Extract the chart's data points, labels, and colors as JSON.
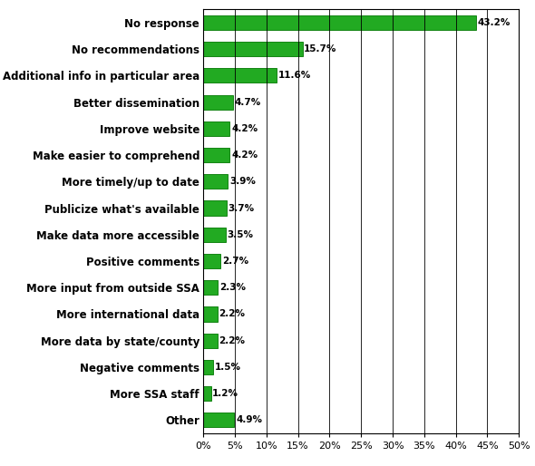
{
  "categories": [
    "Other",
    "More SSA staff",
    "Negative comments",
    "More data by state/county",
    "More international data",
    "More input from outside SSA",
    "Positive comments",
    "Make data more accessible",
    "Publicize what's available",
    "More timely/up to date",
    "Make easier to comprehend",
    "Improve website",
    "Better dissemination",
    "Additional info in particular area",
    "No recommendations",
    "No response"
  ],
  "values": [
    4.9,
    1.2,
    1.5,
    2.2,
    2.2,
    2.3,
    2.7,
    3.5,
    3.7,
    3.9,
    4.2,
    4.2,
    4.7,
    11.6,
    15.7,
    43.2
  ],
  "bar_color": "#22aa22",
  "bar_edge_color": "#007700",
  "label_color": "#000000",
  "background_color": "#ffffff",
  "xlim": [
    0,
    50
  ],
  "xticks": [
    0,
    5,
    10,
    15,
    20,
    25,
    30,
    35,
    40,
    45,
    50
  ],
  "xlabel_fontsize": 8,
  "ylabel_fontsize": 8.5,
  "value_label_fontsize": 7.5,
  "bar_height": 0.55,
  "grid_color": "#000000",
  "grid_linewidth": 0.6
}
